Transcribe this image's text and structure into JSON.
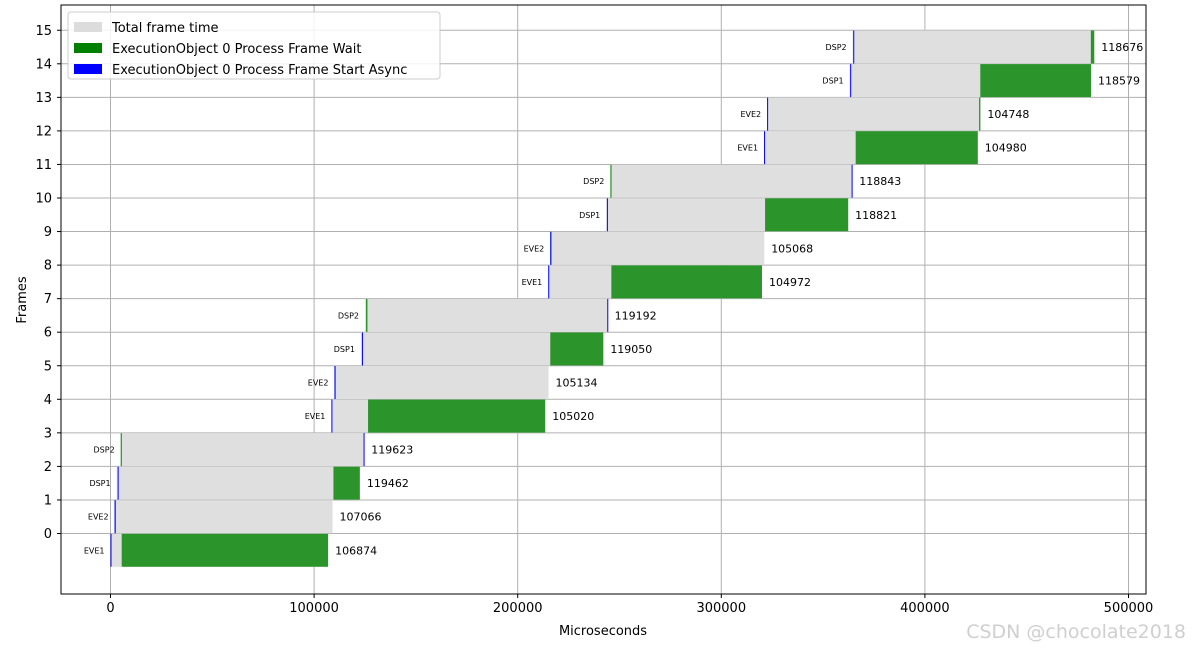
{
  "chart_data": {
    "type": "bar",
    "orientation": "horizontal",
    "title": "",
    "xlabel": "Microseconds",
    "ylabel": "Frames",
    "xlim": [
      -24000,
      510000
    ],
    "x_ticks": [
      0,
      100000,
      200000,
      300000,
      400000,
      500000
    ],
    "x_tick_labels": [
      "0",
      "100000",
      "200000",
      "300000",
      "400000",
      "500000"
    ],
    "y_ticks": [
      0,
      1,
      2,
      3,
      4,
      5,
      6,
      7,
      8,
      9,
      10,
      11,
      12,
      13,
      14,
      15
    ],
    "y_tick_labels": [
      "0",
      "1",
      "2",
      "3",
      "4",
      "5",
      "6",
      "7",
      "8",
      "9",
      "10",
      "11",
      "12",
      "13",
      "14",
      "15"
    ],
    "grid": true,
    "legend_position": "top-left",
    "legend": [
      {
        "label": "Total frame time",
        "color": "#dcdcdc"
      },
      {
        "label": "ExecutionObject 0 Process Frame Wait",
        "color": "#008000"
      },
      {
        "label": "ExecutionObject 0 Process Frame Start Async",
        "color": "#0000ff"
      }
    ],
    "rows": [
      {
        "frame": 0,
        "device": "EVE1",
        "start": 0,
        "total": 106874,
        "label": "106874",
        "wait_start": 5500,
        "wait_end": 106874,
        "async": 0
      },
      {
        "frame": 1,
        "device": "EVE2",
        "start": 2000,
        "total": 107066,
        "label": "107066",
        "wait_start": 2000,
        "wait_end": 2600,
        "async": 2000
      },
      {
        "frame": 2,
        "device": "DSP1",
        "start": 3000,
        "total": 119462,
        "label": "119462",
        "wait_start": 109500,
        "wait_end": 122462,
        "async": 3500
      },
      {
        "frame": 3,
        "device": "DSP2",
        "start": 5000,
        "total": 119623,
        "label": "119623",
        "wait_start": 5000,
        "wait_end": 5600,
        "async": 124300
      },
      {
        "frame": 4,
        "device": "EVE1",
        "start": 108500,
        "total": 105020,
        "label": "105020",
        "wait_start": 126500,
        "wait_end": 213520,
        "async": 108500
      },
      {
        "frame": 5,
        "device": "EVE2",
        "start": 110000,
        "total": 105134,
        "label": "105134",
        "wait_start": 110000,
        "wait_end": 110600,
        "async": 110000
      },
      {
        "frame": 6,
        "device": "DSP1",
        "start": 123000,
        "total": 119050,
        "label": "119050",
        "wait_start": 216000,
        "wait_end": 242050,
        "async": 123500
      },
      {
        "frame": 7,
        "device": "DSP2",
        "start": 125000,
        "total": 119192,
        "label": "119192",
        "wait_start": 125500,
        "wait_end": 126200,
        "async": 244000
      },
      {
        "frame": 8,
        "device": "EVE1",
        "start": 215000,
        "total": 104972,
        "label": "104972",
        "wait_start": 246000,
        "wait_end": 319972,
        "async": 215000
      },
      {
        "frame": 9,
        "device": "EVE2",
        "start": 216000,
        "total": 105068,
        "label": "105068",
        "wait_start": 216000,
        "wait_end": 216600,
        "async": 216000
      },
      {
        "frame": 10,
        "device": "DSP1",
        "start": 243500,
        "total": 118821,
        "label": "118821",
        "wait_start": 321500,
        "wait_end": 362321,
        "async": 243800
      },
      {
        "frame": 11,
        "device": "DSP2",
        "start": 245500,
        "total": 118843,
        "label": "118843",
        "wait_start": 245500,
        "wait_end": 246100,
        "async": 364000
      },
      {
        "frame": 12,
        "device": "EVE1",
        "start": 321000,
        "total": 104980,
        "label": "104980",
        "wait_start": 366000,
        "wait_end": 425980,
        "async": 321000
      },
      {
        "frame": 13,
        "device": "EVE2",
        "start": 322500,
        "total": 104748,
        "label": "104748",
        "wait_start": 426600,
        "wait_end": 427248,
        "async": 322500
      },
      {
        "frame": 14,
        "device": "DSP1",
        "start": 363000,
        "total": 118579,
        "label": "118579",
        "wait_start": 427200,
        "wait_end": 481579,
        "async": 363300
      },
      {
        "frame": 15,
        "device": "DSP2",
        "start": 364500,
        "total": 118676,
        "label": "118676",
        "wait_start": 481500,
        "wait_end": 483176,
        "async": 364800
      }
    ]
  },
  "watermark": "CSDN @chocolate2018"
}
